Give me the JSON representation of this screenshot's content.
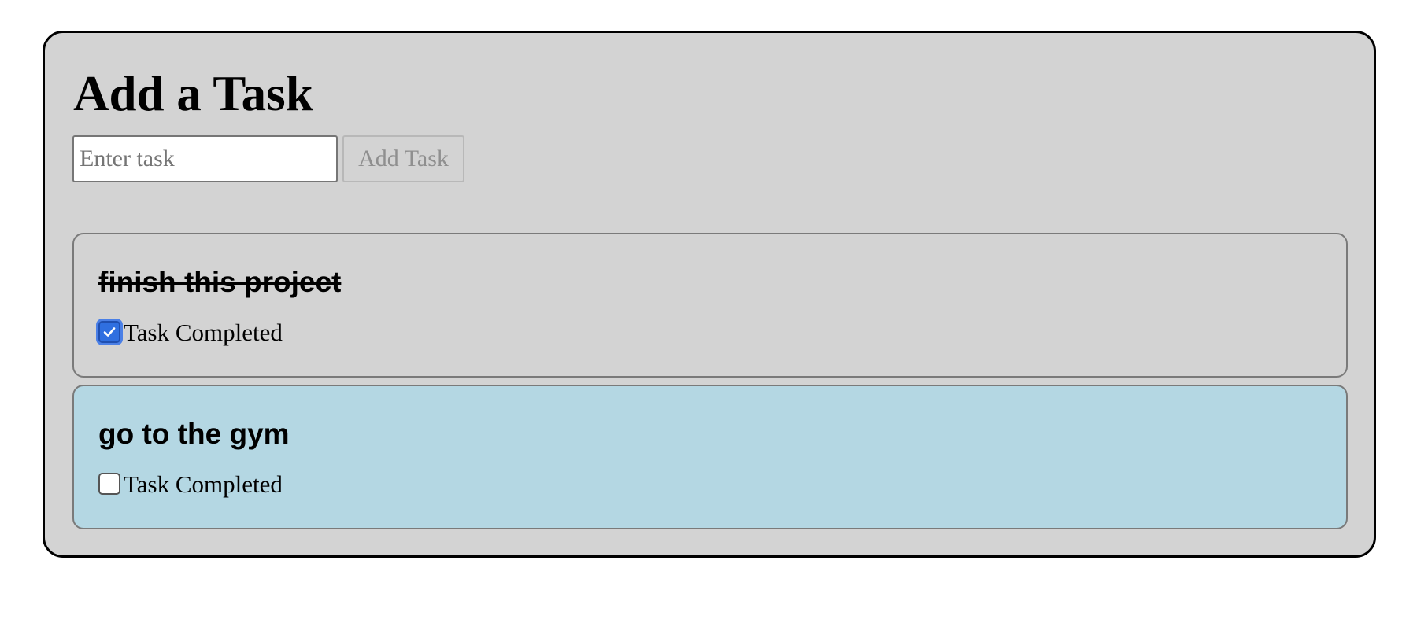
{
  "header": {
    "title": "Add a Task"
  },
  "new_task": {
    "value": "",
    "placeholder": "Enter task",
    "add_button_label": "Add Task"
  },
  "tasks": [
    {
      "name": "finish this project",
      "completed": true,
      "completed_label": "Task Completed",
      "background_color": "#d3d3d3"
    },
    {
      "name": "go to the gym",
      "completed": false,
      "completed_label": "Task Completed",
      "background_color": "#b4d7e3"
    }
  ],
  "colors": {
    "panel_background": "#d3d3d3",
    "checkbox_accent": "#2f6fe0",
    "pending_task_background": "#b4d7e3"
  }
}
